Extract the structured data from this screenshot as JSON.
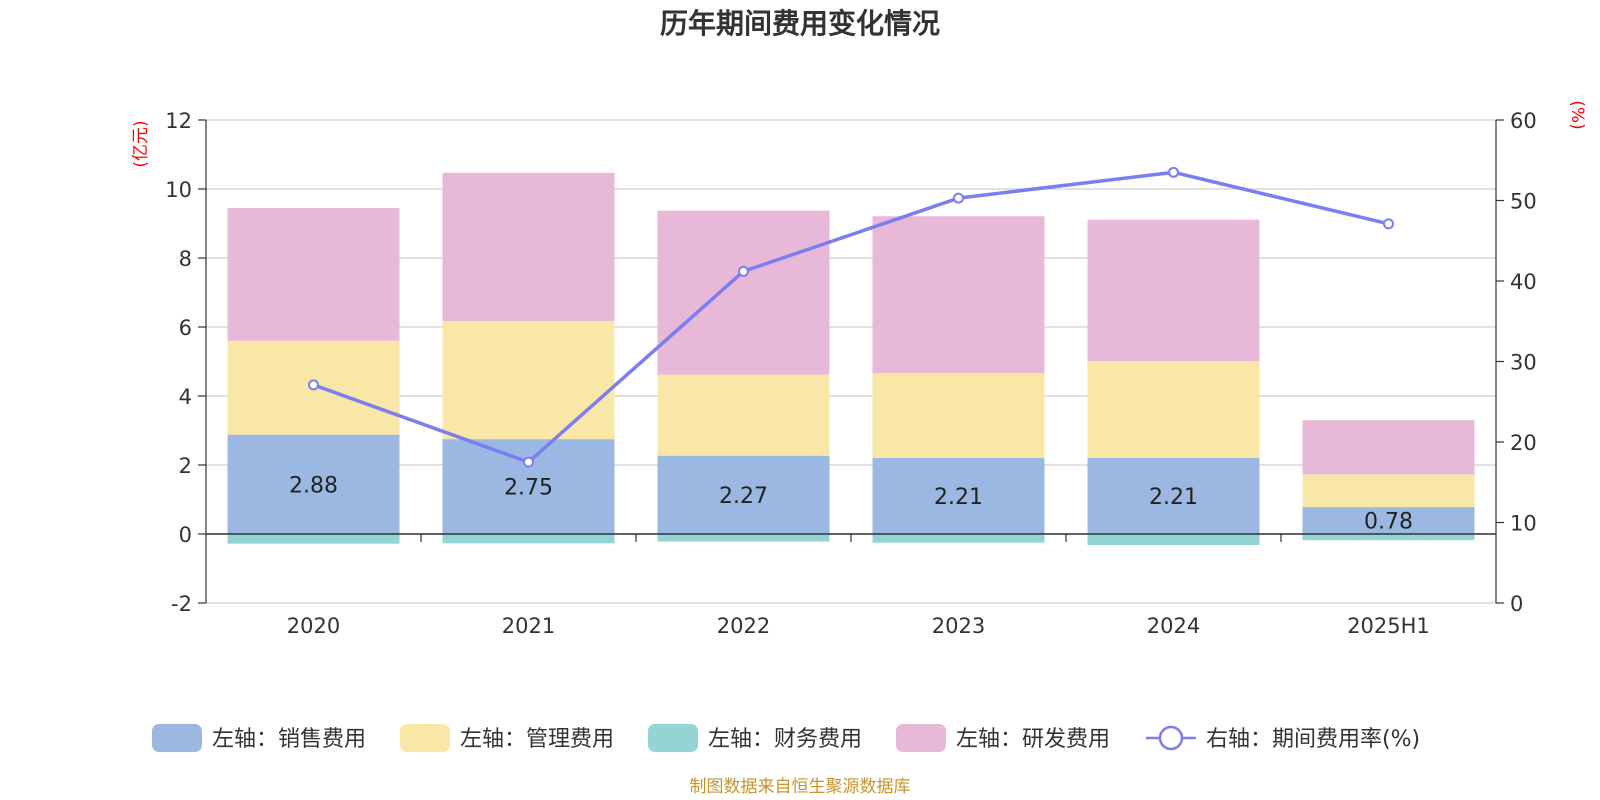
{
  "chart_data": {
    "type": "bar",
    "title": "历年期间费用变化情况",
    "categories": [
      "2020",
      "2021",
      "2022",
      "2023",
      "2024",
      "2025H1"
    ],
    "left_axis": {
      "unit": "(亿元)",
      "min": -2,
      "max": 12,
      "ticks": [
        -2,
        0,
        2,
        4,
        6,
        8,
        10,
        12
      ]
    },
    "right_axis": {
      "unit": "(%)",
      "min": 0,
      "max": 60,
      "ticks": [
        0,
        10,
        20,
        30,
        40,
        50,
        60
      ]
    },
    "grid": true,
    "legend_position": "bottom",
    "series": [
      {
        "name": "左轴：销售费用",
        "type": "bar",
        "axis": "left",
        "color": "#9bb8e3",
        "values": [
          2.88,
          2.75,
          2.27,
          2.21,
          2.21,
          0.78
        ],
        "labels": [
          "2.88",
          "2.75",
          "2.27",
          "2.21",
          "2.21",
          "0.78"
        ]
      },
      {
        "name": "左轴：管理费用",
        "type": "bar",
        "axis": "left",
        "color": "#f9e7a8",
        "values": [
          2.72,
          3.42,
          2.35,
          2.45,
          2.8,
          0.95
        ]
      },
      {
        "name": "左轴：财务费用",
        "type": "bar",
        "axis": "left",
        "color": "#94d4d4",
        "values": [
          -0.28,
          -0.27,
          -0.22,
          -0.25,
          -0.32,
          -0.18
        ]
      },
      {
        "name": "左轴：研发费用",
        "type": "bar",
        "axis": "left",
        "color": "#e8b8d8",
        "values": [
          3.85,
          4.3,
          4.75,
          4.55,
          4.1,
          1.57
        ]
      },
      {
        "name": "右轴：期间费用率(%)",
        "type": "line",
        "axis": "right",
        "color": "#7b7ef0",
        "values": [
          27.1,
          17.5,
          41.2,
          50.3,
          53.5,
          47.1
        ]
      }
    ]
  },
  "source": "制图数据来自恒生聚源数据库"
}
